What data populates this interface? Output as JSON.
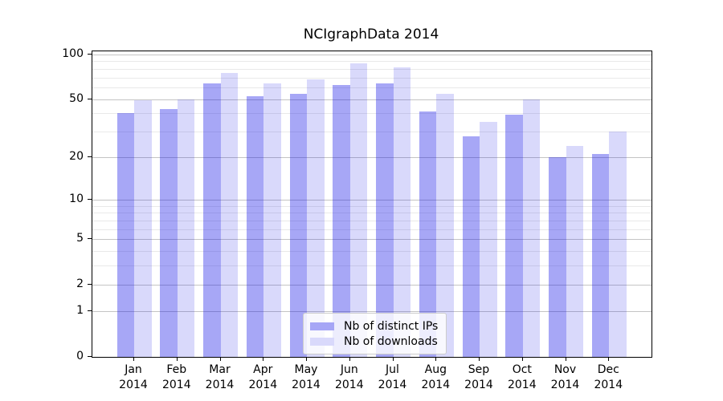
{
  "title": "NCIgraphData 2014",
  "chart_data": {
    "type": "bar",
    "title": "NCIgraphData 2014",
    "categories": [
      "Jan",
      "Feb",
      "Mar",
      "Apr",
      "May",
      "Jun",
      "Jul",
      "Aug",
      "Sep",
      "Oct",
      "Nov",
      "Dec"
    ],
    "x_year_line": "2014",
    "series": [
      {
        "name": "Nb of distinct IPs",
        "color": "#a6a6f6",
        "color_rgba": "rgba(10,10,230,0.36)",
        "values": [
          40,
          43,
          64,
          52,
          54,
          62,
          64,
          41,
          28,
          39,
          20,
          21
        ]
      },
      {
        "name": "Nb of downloads",
        "color": "#d9d9fb",
        "color_rgba": "rgba(10,10,230,0.155)",
        "values": [
          49,
          50,
          75,
          64,
          68,
          87,
          82,
          54,
          35,
          50,
          24,
          30
        ]
      }
    ],
    "y_axis": {
      "scale": "log(1+x)",
      "tick_values": [
        0,
        1,
        2,
        5,
        10,
        20,
        50,
        100
      ],
      "tick_labels": [
        "0",
        "1",
        "2",
        "5",
        "10",
        "20",
        "50",
        "100"
      ],
      "minor_gridline_values": [
        3,
        4,
        6,
        7,
        8,
        9,
        30,
        40,
        60,
        70,
        80,
        90
      ],
      "ylim": [
        0,
        104
      ]
    },
    "xlabel": "",
    "ylabel": "",
    "grid": "both",
    "legend_position": "lower center"
  }
}
